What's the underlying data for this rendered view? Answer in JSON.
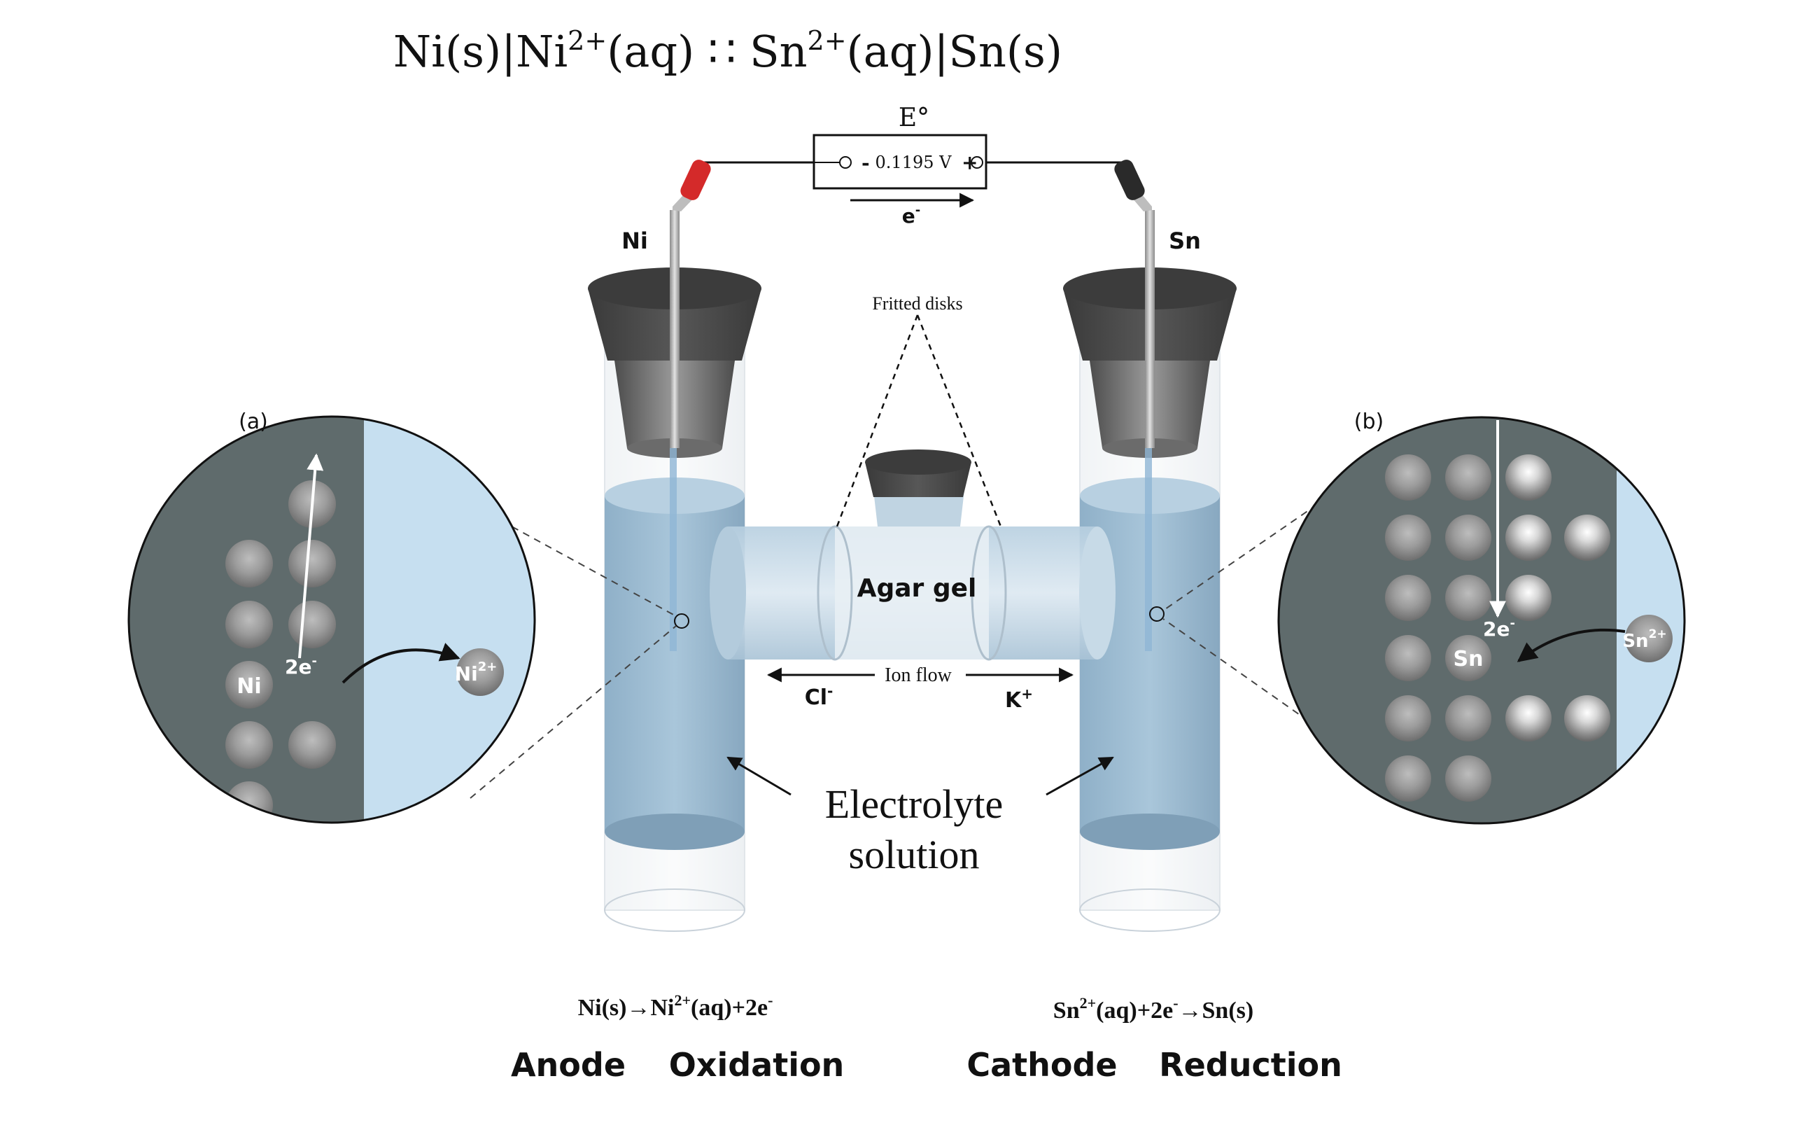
{
  "cell_notation": {
    "ni_s": "Ni(s)",
    "ni_ion": "Ni",
    "ni_charge": "2+",
    "ni_aq": "(aq)",
    "separator": " ∷ ",
    "sn_ion": "Sn",
    "sn_charge": "2+",
    "sn_aq": "(aq)",
    "sn_s": "Sn(s)"
  },
  "meter": {
    "label": "E°",
    "minus": "-",
    "reading": "0.1195 V",
    "plus": "+"
  },
  "electron_flow": {
    "symbol": "e",
    "charge": "-"
  },
  "electrodes": {
    "left": "Ni",
    "right": "Sn"
  },
  "salt_bridge": {
    "frit_label": "Fritted disks",
    "gel_label": "Agar gel",
    "ion_flow_label": "Ion flow",
    "anion": "Cl",
    "anion_charge": "-",
    "cation": "K",
    "cation_charge": "+"
  },
  "electrolyte_label": {
    "line1": "Electrolyte",
    "line2": "solution"
  },
  "inset_a": {
    "tag": "(a)",
    "electrons": "2e",
    "electrons_charge": "-",
    "atom_label": "Ni",
    "ion_label": "Ni",
    "ion_charge": "2+"
  },
  "inset_b": {
    "tag": "(b)",
    "electrons": "2e",
    "electrons_charge": "-",
    "atom_label": "Sn",
    "ion_label": "Sn",
    "ion_charge": "2+"
  },
  "anode": {
    "reaction_a": "Ni(s)→Ni",
    "reaction_charge": "2+",
    "reaction_b": "(aq)+2e",
    "reaction_e_charge": "-",
    "label": "Anode",
    "process": "Oxidation"
  },
  "cathode": {
    "reaction_a": "Sn",
    "reaction_charge": "2+",
    "reaction_b": "(aq)+2e",
    "reaction_e_charge": "-",
    "reaction_c": "→Sn(s)",
    "label": "Cathode",
    "process": "Reduction"
  },
  "colors": {
    "metal_dark": "#5f6b6c",
    "solution_light": "#c6dff0",
    "electrolyte": "#9fbfd8",
    "red_clip": "#d42a2a",
    "black_clip": "#2a2a2a",
    "stopper": "#4a4a4a"
  }
}
